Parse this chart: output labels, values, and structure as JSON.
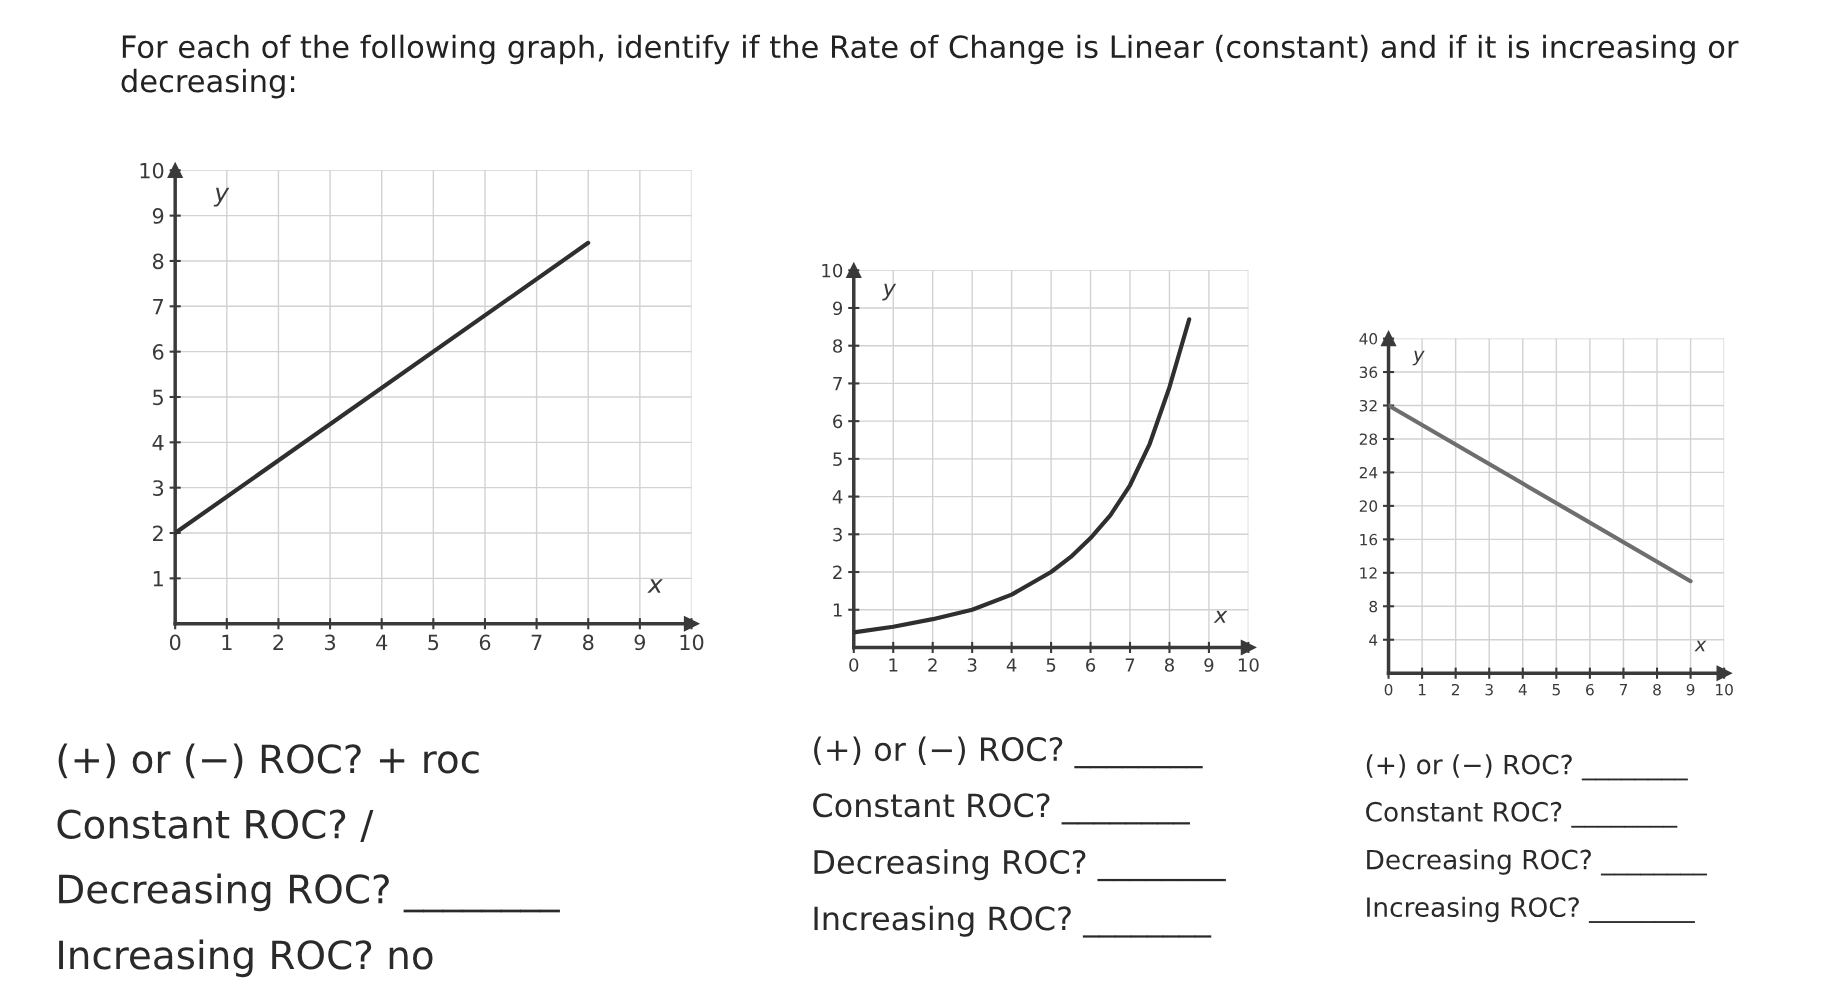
{
  "chart_data": [
    {
      "type": "line",
      "title": "For each of the following graph, identify if the Rate of Change is Linear (constant) and if it is increasing or decreasing:",
      "xlabel": "x",
      "ylabel": "y",
      "x": [
        0,
        8
      ],
      "series": [
        {
          "color": "#2f2f2f",
          "values": [
            2,
            8.4
          ]
        }
      ],
      "xlim": [
        0,
        10
      ],
      "ylim": [
        0,
        10
      ],
      "xticks": [
        0,
        1,
        2,
        3,
        4,
        5,
        6,
        7,
        8,
        9,
        10
      ],
      "yticks": [
        1,
        2,
        3,
        4,
        5,
        6,
        7,
        8,
        9,
        10
      ],
      "grid": true,
      "annotations": [
        "(+) or (−) ROC? + roc",
        "Constant ROC? /",
        "Decreasing ROC? ________",
        "Increasing ROC? no"
      ]
    },
    {
      "type": "line",
      "xlabel": "x",
      "ylabel": "y",
      "x": [
        0,
        1,
        2,
        3,
        4,
        5,
        5.5,
        6,
        6.5,
        7,
        7.5,
        8,
        8.25,
        8.5
      ],
      "series": [
        {
          "color": "#2f2f2f",
          "values": [
            0.4,
            0.55,
            0.75,
            1.0,
            1.4,
            2.0,
            2.4,
            2.9,
            3.5,
            4.3,
            5.4,
            6.9,
            7.8,
            8.7
          ]
        }
      ],
      "xlim": [
        0,
        10
      ],
      "ylim": [
        0,
        10
      ],
      "xticks": [
        0,
        1,
        2,
        3,
        4,
        5,
        6,
        7,
        8,
        9,
        10
      ],
      "yticks": [
        1,
        2,
        3,
        4,
        5,
        6,
        7,
        8,
        9,
        10
      ],
      "grid": true,
      "annotations": [
        "(+) or (−) ROC? ________",
        "Constant ROC? ________",
        "Decreasing ROC? ________",
        "Increasing ROC? ________"
      ]
    },
    {
      "type": "line",
      "xlabel": "x",
      "ylabel": "y",
      "x": [
        0,
        9
      ],
      "series": [
        {
          "color": "#6e6e6e",
          "values": [
            32,
            11
          ]
        }
      ],
      "xlim": [
        0,
        10
      ],
      "ylim": [
        0,
        40
      ],
      "xticks": [
        0,
        1,
        2,
        3,
        4,
        5,
        6,
        7,
        8,
        9,
        10
      ],
      "yticks": [
        4,
        8,
        12,
        16,
        20,
        24,
        28,
        32,
        36,
        40
      ],
      "grid": true,
      "annotations": [
        "(+) or (−) ROC? ________",
        "Constant ROC? ________",
        "Decreasing ROC? ________",
        "Increasing ROC? ________"
      ]
    }
  ]
}
